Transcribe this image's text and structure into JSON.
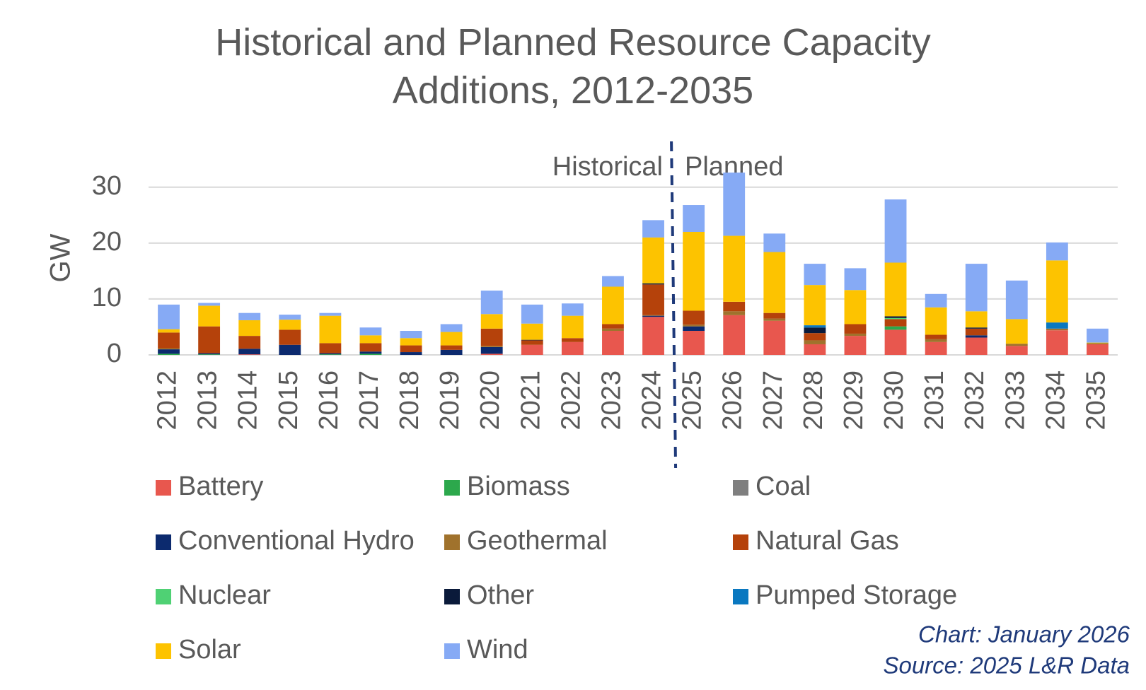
{
  "chart_data": {
    "type": "stacked_bar",
    "title": "Historical and Planned Resource Capacity Additions, 2012-2035",
    "y_label": "GW",
    "annotations": [
      "Historical",
      "Planned"
    ],
    "footer": [
      "Chart: January 2026",
      "Source: 2025 L&R Data"
    ],
    "categories": [
      "2012",
      "2013",
      "2014",
      "2015",
      "2016",
      "2017",
      "2018",
      "2019",
      "2020",
      "2021",
      "2022",
      "2023",
      "2024",
      "2025",
      "2026",
      "2027",
      "2028",
      "2029",
      "2030",
      "2031",
      "2032",
      "2033",
      "2034",
      "2035"
    ],
    "ylim": [
      0,
      33
    ],
    "yticks": [
      0,
      10,
      20,
      30
    ],
    "grid": true,
    "series": [
      {
        "name": "Battery",
        "color": "#e8574e",
        "values": [
          0,
          0,
          0.1,
          0,
          0,
          0,
          0,
          0,
          0.2,
          1.8,
          2.3,
          4.3,
          6.8,
          4.3,
          7.1,
          6.1,
          1.9,
          3.4,
          4.5,
          2.3,
          3.1,
          1.6,
          4.4,
          1.9
        ]
      },
      {
        "name": "Biomass",
        "color": "#2ca84c",
        "values": [
          0.2,
          0.1,
          0,
          0,
          0.1,
          0.2,
          0,
          0,
          0,
          0,
          0,
          0,
          0,
          0,
          0,
          0,
          0,
          0,
          0.6,
          0,
          0,
          0,
          0,
          0
        ]
      },
      {
        "name": "Coal",
        "color": "#7f7f7f",
        "values": [
          0,
          0,
          0,
          0,
          0,
          0,
          0,
          0,
          0,
          0,
          0,
          0,
          0,
          0,
          0,
          0,
          0,
          0,
          0,
          0,
          0,
          0,
          0,
          0
        ]
      },
      {
        "name": "Conventional Hydro",
        "color": "#0c2a6e",
        "values": [
          0.8,
          0.2,
          1.0,
          1.8,
          0.2,
          0.4,
          0.5,
          0.9,
          1.2,
          0,
          0,
          0,
          0.2,
          0.8,
          0,
          0,
          0,
          0,
          0,
          0,
          0.4,
          0,
          0,
          0
        ]
      },
      {
        "name": "Geothermal",
        "color": "#a0722c",
        "values": [
          0.2,
          0,
          0,
          0,
          0,
          0,
          0,
          0,
          0.2,
          0,
          0,
          0.4,
          0.1,
          0.3,
          0.7,
          0.4,
          0.7,
          0.4,
          0,
          0.5,
          0,
          0.4,
          0.3,
          0.2
        ]
      },
      {
        "name": "Natural Gas",
        "color": "#b5420b",
        "values": [
          2.8,
          4.8,
          2.3,
          2.7,
          1.8,
          1.5,
          1.2,
          0.8,
          3.1,
          0.8,
          0.7,
          0.8,
          5.5,
          2.5,
          1.7,
          1.0,
          1.3,
          1.7,
          1.3,
          0.8,
          1.2,
          0,
          0,
          0
        ]
      },
      {
        "name": "Nuclear",
        "color": "#4fd174",
        "values": [
          0,
          0,
          0,
          0,
          0,
          0,
          0,
          0,
          0,
          0,
          0,
          0,
          0,
          0,
          0,
          0,
          0,
          0,
          0.2,
          0,
          0,
          0,
          0,
          0
        ]
      },
      {
        "name": "Other",
        "color": "#0a1a3a",
        "values": [
          0,
          0,
          0,
          0,
          0,
          0,
          0,
          0,
          0,
          0.1,
          0,
          0,
          0.2,
          0,
          0,
          0,
          1.0,
          0,
          0.3,
          0,
          0.2,
          0,
          0,
          0
        ]
      },
      {
        "name": "Pumped Storage",
        "color": "#0a78c0",
        "values": [
          0,
          0,
          0,
          0,
          0,
          0,
          0,
          0,
          0,
          0,
          0,
          0,
          0,
          0,
          0,
          0,
          0.4,
          0,
          0,
          0,
          0,
          0,
          1.1,
          0
        ]
      },
      {
        "name": "Solar",
        "color": "#fdc300",
        "values": [
          0.6,
          3.7,
          2.8,
          1.8,
          4.9,
          1.4,
          1.3,
          2.4,
          2.6,
          2.9,
          4.0,
          6.7,
          8.2,
          14.1,
          11.8,
          10.9,
          7.2,
          6.1,
          9.6,
          4.9,
          2.9,
          4.4,
          11.1,
          0.1
        ]
      },
      {
        "name": "Wind",
        "color": "#86aaf5",
        "values": [
          4.4,
          0.5,
          1.3,
          0.9,
          0.5,
          1.4,
          1.3,
          1.4,
          4.2,
          3.4,
          2.2,
          1.9,
          3.1,
          4.8,
          11.3,
          3.3,
          3.8,
          3.9,
          11.3,
          2.4,
          8.5,
          6.9,
          3.2,
          2.5
        ]
      }
    ]
  }
}
